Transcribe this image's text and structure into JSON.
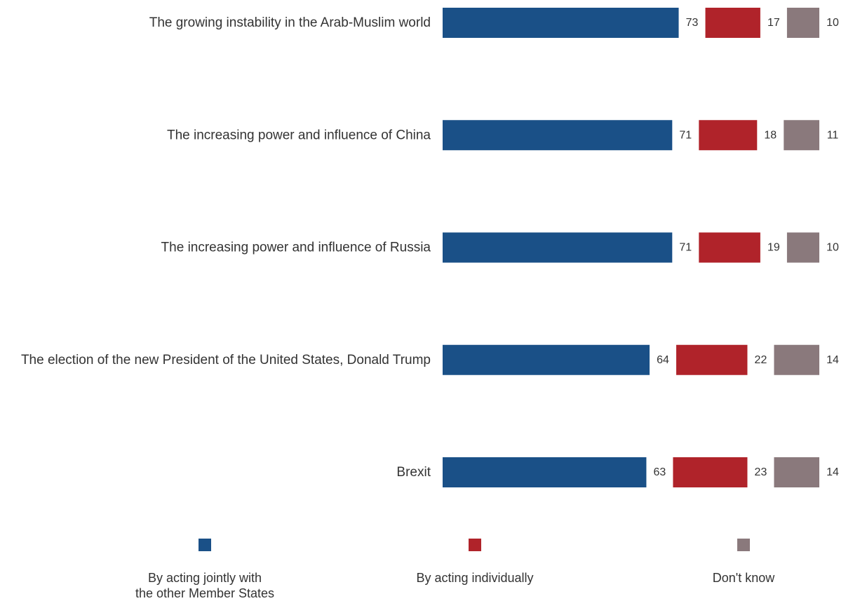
{
  "chart_data": {
    "type": "bar",
    "orientation": "horizontal",
    "layout": "segmented",
    "categories": [
      "The growing instability in the Arab-Muslim world",
      "The increasing power and influence of China",
      "The increasing power and influence of Russia",
      "The election of the new President of the United States, Donald Trump",
      "Brexit"
    ],
    "series": [
      {
        "name": "By acting jointly with the other Member States",
        "color": "#1a5087",
        "values": [
          73,
          71,
          71,
          64,
          63
        ]
      },
      {
        "name": "By acting individually",
        "color": "#b0232a",
        "values": [
          17,
          18,
          19,
          22,
          23
        ]
      },
      {
        "name": "Don't know",
        "color": "#8a797c",
        "values": [
          10,
          11,
          10,
          14,
          14
        ]
      }
    ],
    "data_labels": true,
    "grid": false,
    "legend_position": "bottom"
  },
  "legend": {
    "items": [
      {
        "label_lines": [
          "By acting jointly with",
          "the other Member States"
        ],
        "color": "#1a5087"
      },
      {
        "label_lines": [
          "By acting individually"
        ],
        "color": "#b0232a"
      },
      {
        "label_lines": [
          "Don't know"
        ],
        "color": "#8a797c"
      }
    ]
  }
}
